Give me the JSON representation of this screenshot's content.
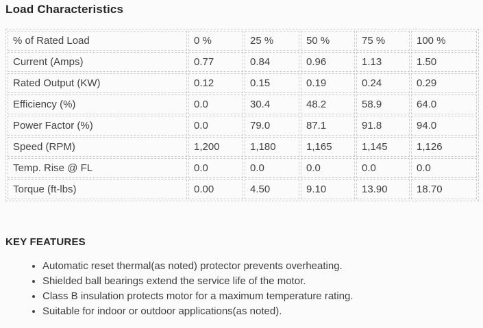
{
  "page": {
    "title": "Load Characteristics",
    "background_color": "#fbfbfb",
    "text_color": "#404040",
    "heading_color": "#262626",
    "table_border_color": "#cccccc"
  },
  "load_table": {
    "rows": [
      {
        "label": "% of Rated Load",
        "values": [
          "0 %",
          "25 %",
          "50 %",
          "75 %",
          "100 %"
        ]
      },
      {
        "label": "Current (Amps)",
        "values": [
          "0.77",
          "0.84",
          "0.96",
          "1.13",
          "1.50"
        ]
      },
      {
        "label": "Rated Output (KW)",
        "values": [
          "0.12",
          "0.15",
          "0.19",
          "0.24",
          "0.29"
        ]
      },
      {
        "label": "Efficiency (%)",
        "values": [
          "0.0",
          "30.4",
          "48.2",
          "58.9",
          "64.0"
        ]
      },
      {
        "label": "Power Factor (%)",
        "values": [
          "0.0",
          "79.0",
          "87.1",
          "91.8",
          "94.0"
        ]
      },
      {
        "label": "Speed (RPM)",
        "values": [
          "1,200",
          "1,180",
          "1,165",
          "1,145",
          "1,126"
        ]
      },
      {
        "label": "Temp. Rise @ FL",
        "values": [
          "0.0",
          "0.0",
          "0.0",
          "0.0",
          "0.0"
        ]
      },
      {
        "label": "Torque (ft-lbs)",
        "values": [
          "0.00",
          "4.50",
          "9.10",
          "13.90",
          "18.70"
        ]
      }
    ]
  },
  "key_features": {
    "heading": "KEY FEATURES",
    "items": [
      "Automatic reset thermal(as noted) protector prevents overheating.",
      "Shielded ball bearings extend the service life of the motor.",
      "Class B insulation protects motor for a maximum temperature rating.",
      "Suitable for indoor or outdoor applications(as noted)."
    ]
  }
}
